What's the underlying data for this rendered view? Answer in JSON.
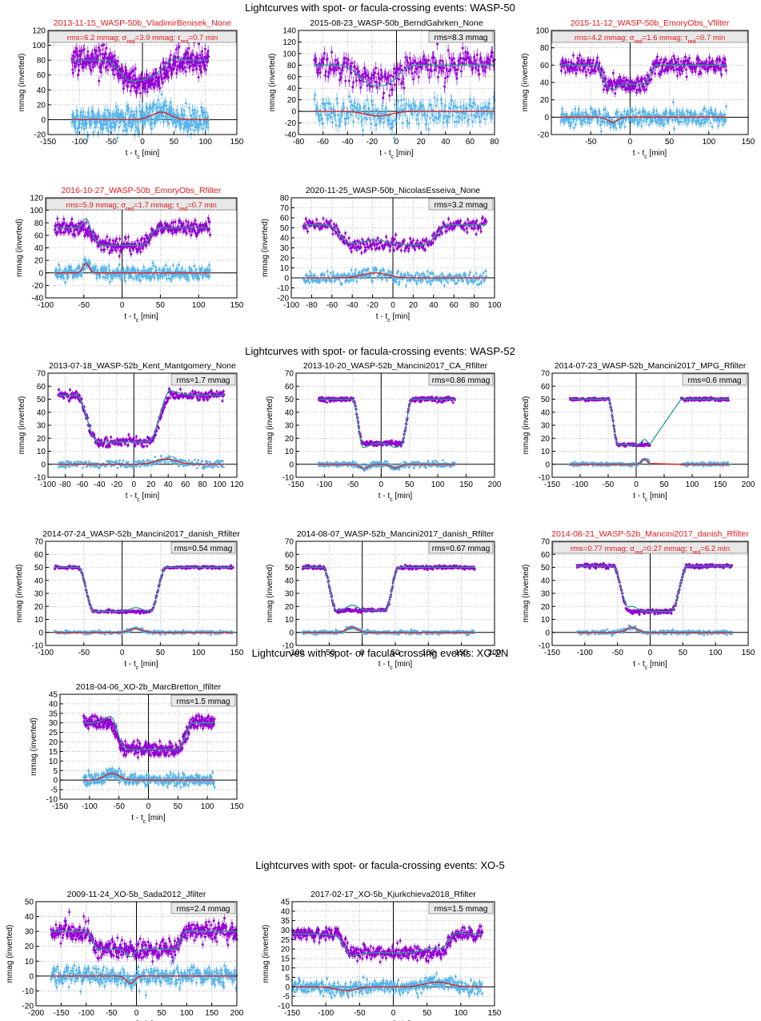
{
  "colors": {
    "data": "#9400d3",
    "model": "#2a9a8e",
    "residual": "#56b4e9",
    "spot": "#e41a1c",
    "red_text": "#e41a1c",
    "grid": "#888888"
  },
  "common": {
    "ylabel": "mmag (inverted)",
    "xlabel_main": "t - t",
    "xlabel_sub": "c",
    "xlabel_unit": " [min]"
  },
  "sections": [
    {
      "title": "Lightcurves with spot- or facula-crossing events: WASP-50"
    },
    {
      "title": "Lightcurves with spot- or facula-crossing events: WASP-52"
    },
    {
      "title": "Lightcurves with spot- or facula-crossing events: XO-2N"
    },
    {
      "title": "Lightcurves with spot- or facula-crossing events: XO-5"
    }
  ],
  "chart_data": [
    {
      "type": "scatter",
      "title": "2013-11-15_WASP-50b_VladimirBenisek_None",
      "title_red": true,
      "stats": {
        "rms": "6.2 mmag",
        "sred": "3.9 mmag",
        "tred": "0.7 min"
      },
      "xlim": [
        -150,
        150
      ],
      "xticks": [
        -150,
        -100,
        -50,
        0,
        50,
        100,
        150
      ],
      "ylim": [
        -20,
        120
      ],
      "yticks": [
        -20,
        0,
        20,
        40,
        60,
        80,
        100,
        120
      ],
      "data_range": [
        -112,
        105
      ],
      "oot": 80,
      "depth": 28,
      "tc": 0,
      "half_dur": 58,
      "ingress": 40,
      "noise": 8,
      "resid_noise": 8,
      "spots": [
        {
          "t": 30,
          "amp": 10,
          "w": 15
        }
      ]
    },
    {
      "type": "scatter",
      "title": "2015-08-23_WASP-50b_BerndGahrken_None",
      "title_red": false,
      "stats": {
        "rms": "8.3 mmag"
      },
      "xlim": [
        -80,
        80
      ],
      "xticks": [
        -80,
        -60,
        -40,
        -20,
        0,
        20,
        40,
        60,
        80
      ],
      "ylim": [
        -40,
        140
      ],
      "yticks": [
        -40,
        -20,
        0,
        20,
        40,
        60,
        80,
        100,
        120,
        140
      ],
      "data_range": [
        -67,
        80
      ],
      "oot": 80,
      "depth": 28,
      "tc": -15,
      "half_dur": 30,
      "ingress": 25,
      "noise": 12,
      "resid_noise": 12,
      "spots": [
        {
          "t": -15,
          "amp": -8,
          "w": 10
        }
      ]
    },
    {
      "type": "scatter",
      "title": "2015-11-12_WASP-50b_EmoryObs_Vfilter",
      "title_red": true,
      "stats": {
        "rms": "4.2 mmag",
        "sred": "1.6 mmag",
        "tred": "0.7 min"
      },
      "xlim": [
        -100,
        150
      ],
      "xticks": [
        -50,
        0,
        50,
        100,
        150
      ],
      "ylim": [
        -20,
        100
      ],
      "yticks": [
        -20,
        0,
        20,
        40,
        60,
        80,
        100
      ],
      "data_range": [
        -88,
        122
      ],
      "oot": 60,
      "depth": 22,
      "tc": -5,
      "half_dur": 38,
      "ingress": 15,
      "noise": 5,
      "resid_noise": 5,
      "spots": [
        {
          "t": -22,
          "amp": -6,
          "w": 6
        }
      ]
    },
    {
      "type": "scatter",
      "title": "2016-10-27_WASP-50b_EmoryObs_Rfilter",
      "title_red": true,
      "stats": {
        "rms": "5.9 mmag",
        "sred": "1.7 mmag",
        "tred": "0.7 min"
      },
      "xlim": [
        -100,
        150
      ],
      "xticks": [
        -100,
        -50,
        0,
        50,
        100,
        150
      ],
      "ylim": [
        -40,
        120
      ],
      "yticks": [
        -40,
        -20,
        0,
        20,
        40,
        60,
        80,
        100,
        120
      ],
      "data_range": [
        -88,
        115
      ],
      "oot": 72,
      "depth": 28,
      "tc": 0,
      "half_dur": 48,
      "ingress": 22,
      "noise": 6,
      "resid_noise": 6,
      "spots": [
        {
          "t": -47,
          "amp": 15,
          "w": 4
        }
      ]
    },
    {
      "type": "scatter",
      "title": "2020-11-25_WASP-50b_NicolasEsseiva_None",
      "title_red": false,
      "stats": {
        "rms": "3.2 mmag"
      },
      "xlim": [
        -100,
        100
      ],
      "xticks": [
        -100,
        -80,
        -60,
        -40,
        -20,
        0,
        20,
        40,
        60,
        80,
        100
      ],
      "ylim": [
        -20,
        80
      ],
      "yticks": [
        -20,
        -10,
        0,
        10,
        20,
        30,
        40,
        50,
        60,
        70,
        80
      ],
      "data_range": [
        -88,
        92
      ],
      "oot": 53,
      "depth": 20,
      "tc": -5,
      "half_dur": 60,
      "ingress": 25,
      "noise": 3,
      "resid_noise": 3,
      "spots": [
        {
          "t": -18,
          "amp": 5,
          "w": 12
        }
      ]
    },
    {
      "type": "scatter",
      "title": "2013-07-18_WASP-52b_Kent_Mantgomery_None",
      "title_red": false,
      "stats": {
        "rms": "1.7 mmag"
      },
      "xlim": [
        -100,
        120
      ],
      "xticks": [
        -100,
        -80,
        -60,
        -40,
        -20,
        0,
        20,
        40,
        60,
        80,
        100,
        120
      ],
      "ylim": [
        -10,
        70
      ],
      "yticks": [
        -10,
        0,
        10,
        20,
        30,
        40,
        50,
        60,
        70
      ],
      "data_range": [
        -88,
        105
      ],
      "oot": 53,
      "depth": 36,
      "tc": -12,
      "half_dur": 55,
      "ingress": 25,
      "noise": 1.8,
      "resid_noise": 1.5,
      "spots": [
        {
          "t": 38,
          "amp": 4,
          "w": 12
        }
      ]
    },
    {
      "type": "scatter",
      "title": "2013-10-20_WASP-52b_Mancini2017_CA_Rfilter",
      "title_red": false,
      "stats": {
        "rms": "0.86 mmag"
      },
      "xlim": [
        -150,
        200
      ],
      "xticks": [
        -150,
        -100,
        -50,
        0,
        50,
        100,
        150,
        200
      ],
      "ylim": [
        -10,
        70
      ],
      "yticks": [
        -10,
        0,
        10,
        20,
        30,
        40,
        50,
        60,
        70
      ],
      "data_range": [
        -110,
        130
      ],
      "oot": 50,
      "depth": 34,
      "tc": 2,
      "half_dur": 52,
      "ingress": 18,
      "noise": 0.9,
      "resid_noise": 1,
      "spots": [
        {
          "t": -30,
          "amp": -3,
          "w": 8
        },
        {
          "t": 25,
          "amp": -3,
          "w": 8
        }
      ]
    },
    {
      "type": "scatter",
      "title": "2014-07-23_WASP-52b_Mancini2017_MPG_Rfilter",
      "title_red": false,
      "stats": {
        "rms": "0.6 mmag"
      },
      "xlim": [
        -150,
        200
      ],
      "xticks": [
        -150,
        -100,
        -50,
        0,
        50,
        100,
        150,
        200
      ],
      "ylim": [
        -10,
        70
      ],
      "yticks": [
        -10,
        0,
        10,
        20,
        30,
        40,
        50,
        60,
        70
      ],
      "data_range": [
        -118,
        165
      ],
      "gap": [
        25,
        80
      ],
      "oot": 50,
      "depth": 35,
      "tc": 8,
      "half_dur": 58,
      "ingress": 18,
      "noise": 0.6,
      "resid_noise": 0.7,
      "spots": [
        {
          "t": 15,
          "amp": 4,
          "w": 5
        }
      ]
    },
    {
      "type": "scatter",
      "title": "2014-07-24_WASP-52b_Mancini2017_danish_Rfilter",
      "title_red": false,
      "stats": {
        "rms": "0.54 mmag"
      },
      "xlim": [
        -100,
        150
      ],
      "xticks": [
        -100,
        -50,
        0,
        50,
        100,
        150
      ],
      "ylim": [
        -10,
        70
      ],
      "yticks": [
        -10,
        0,
        10,
        20,
        30,
        40,
        50,
        60,
        70
      ],
      "data_range": [
        -88,
        145
      ],
      "oot": 50,
      "depth": 34,
      "tc": 0,
      "half_dur": 57,
      "ingress": 20,
      "noise": 0.55,
      "resid_noise": 0.6,
      "spots": [
        {
          "t": 18,
          "amp": 3,
          "w": 8
        }
      ]
    },
    {
      "type": "scatter",
      "title": "2014-08-07_WASP-52b_Mancini2017_danish_Rfilter",
      "title_red": false,
      "stats": {
        "rms": "0.67 mmag"
      },
      "xlim": [
        -100,
        200
      ],
      "xticks": [
        -100,
        -50,
        0,
        50,
        100,
        150,
        200
      ],
      "ylim": [
        -10,
        70
      ],
      "yticks": [
        -10,
        0,
        10,
        20,
        30,
        40,
        50,
        60,
        70
      ],
      "data_range": [
        -90,
        170
      ],
      "oot": 50,
      "depth": 33,
      "tc": -2,
      "half_dur": 57,
      "ingress": 20,
      "noise": 0.7,
      "resid_noise": 0.7,
      "spots": [
        {
          "t": -15,
          "amp": 4,
          "w": 8
        }
      ]
    },
    {
      "type": "scatter",
      "title": "2014-08-21_WASP-52b_Mancini2017_danish_Rfilter",
      "title_red": true,
      "stats": {
        "rms": "0.77 mmag",
        "sred": "0.27 mmag",
        "tred": "6.2 min"
      },
      "xlim": [
        -150,
        150
      ],
      "xticks": [
        -150,
        -100,
        -50,
        0,
        50,
        100,
        150
      ],
      "ylim": [
        -10,
        70
      ],
      "yticks": [
        -10,
        0,
        10,
        20,
        30,
        40,
        50,
        60,
        70
      ],
      "data_range": [
        -112,
        125
      ],
      "oot": 51,
      "depth": 35,
      "tc": 0,
      "half_dur": 57,
      "ingress": 25,
      "noise": 0.8,
      "resid_noise": 0.8,
      "spots": [
        {
          "t": -28,
          "amp": 4,
          "w": 8
        }
      ]
    },
    {
      "type": "scatter",
      "title": "2018-04-06_XO-2b_MarcBretton_Ifilter",
      "title_red": false,
      "stats": {
        "rms": "1.5 mmag"
      },
      "xlim": [
        -150,
        150
      ],
      "xticks": [
        -150,
        -100,
        -50,
        0,
        50,
        100,
        150
      ],
      "ylim": [
        -10,
        45
      ],
      "yticks": [
        -10,
        -5,
        0,
        5,
        10,
        15,
        20,
        25,
        30,
        35,
        40,
        45
      ],
      "data_range": [
        -110,
        112
      ],
      "oot": 30,
      "depth": 14,
      "tc": 5,
      "half_dur": 70,
      "ingress": 25,
      "noise": 1.8,
      "resid_noise": 1.6,
      "spots": [
        {
          "t": -62,
          "amp": 3.5,
          "w": 12
        }
      ]
    },
    {
      "type": "scatter",
      "title": "2009-11-24_XO-5b_Sada2012_Jfilter",
      "title_red": false,
      "stats": {
        "rms": "2.4 mmag"
      },
      "xlim": [
        -200,
        200
      ],
      "xticks": [
        -200,
        -150,
        -100,
        -50,
        0,
        50,
        100,
        150,
        200
      ],
      "ylim": [
        -20,
        50
      ],
      "yticks": [
        -20,
        -10,
        0,
        10,
        20,
        30,
        40,
        50
      ],
      "data_range": [
        -170,
        200
      ],
      "oot": 30,
      "depth": 12,
      "tc": 0,
      "half_dur": 100,
      "ingress": 25,
      "noise": 3,
      "resid_noise": 3,
      "spots": [
        {
          "t": -12,
          "amp": -5,
          "w": 8
        }
      ]
    },
    {
      "type": "scatter",
      "title": "2017-02-17_XO-5b_Kjurkchieva2018_Rfilter",
      "title_red": false,
      "stats": {
        "rms": "1.5 mmag"
      },
      "xlim": [
        -150,
        150
      ],
      "xticks": [
        -150,
        -100,
        -50,
        0,
        50,
        100,
        150
      ],
      "ylim": [
        -10,
        45
      ],
      "yticks": [
        -10,
        -5,
        0,
        5,
        10,
        15,
        20,
        25,
        30,
        35,
        40,
        45
      ],
      "data_range": [
        -150,
        132
      ],
      "oot": 28,
      "depth": 10,
      "tc": 5,
      "half_dur": 90,
      "ingress": 25,
      "noise": 1.8,
      "resid_noise": 1.8,
      "spots": [
        {
          "t": -70,
          "amp": -2,
          "w": 15
        },
        {
          "t": 65,
          "amp": 2.5,
          "w": 18
        }
      ]
    }
  ]
}
